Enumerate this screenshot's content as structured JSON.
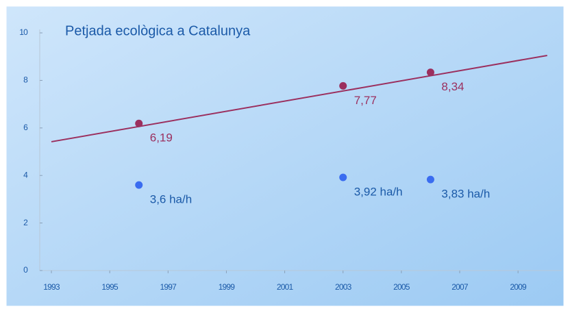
{
  "chart_data": {
    "type": "scatter",
    "title": "Petjada ecològica a Catalunya",
    "xlim": [
      1992.6,
      2010.5
    ],
    "xticks": [
      1993,
      1995,
      1997,
      1999,
      2001,
      2003,
      2005,
      2007,
      2009
    ],
    "ylim": [
      0,
      10
    ],
    "yticks": [
      0,
      2,
      4,
      6,
      8,
      10
    ],
    "series": [
      {
        "style": "line",
        "color": "#9b2f5e",
        "x": [
          1993,
          2010
        ],
        "values": [
          5.42,
          9.05
        ]
      },
      {
        "style": "points",
        "color": "#9b2f5e",
        "label_color": "#9b2f5e",
        "x": [
          1996,
          2003,
          2006
        ],
        "values": [
          6.19,
          7.77,
          8.34
        ],
        "value_labels": [
          "6,19",
          "7,77",
          "8,34"
        ]
      },
      {
        "style": "points",
        "color": "#3a6cf0",
        "label_color": "#1b5aa8",
        "x": [
          1996,
          2003,
          2006
        ],
        "values": [
          3.6,
          3.92,
          3.83
        ],
        "value_labels": [
          "3,6 ha/h",
          "3,92 ha/h",
          "3,83 ha/h"
        ]
      }
    ]
  }
}
